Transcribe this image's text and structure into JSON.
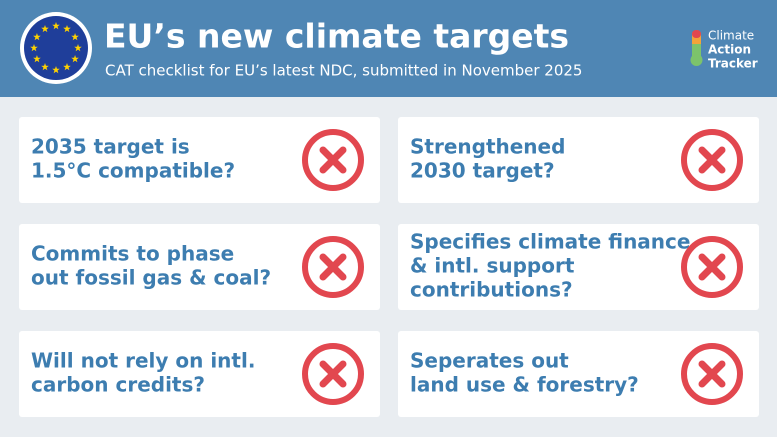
{
  "header": {
    "title": "EU’s new climate targets",
    "subtitle": "CAT checklist for EU’s latest NDC, submitted in November 2025",
    "logo": [
      "Climate",
      "Action",
      "Tracker"
    ]
  },
  "cards": [
    {
      "lines": [
        "2035 target is",
        "1.5°C compatible?"
      ]
    },
    {
      "lines": [
        "Strengthened",
        "2030 target?"
      ]
    },
    {
      "lines": [
        "Commits to phase",
        "out fossil gas & coal?"
      ]
    },
    {
      "lines": [
        "Specifies climate finance",
        "& intl. support",
        "contributions?"
      ]
    },
    {
      "lines": [
        "Will not rely on intl.",
        "carbon credits?"
      ]
    },
    {
      "lines": [
        "Seperates out",
        "land use & forestry?"
      ]
    }
  ]
}
